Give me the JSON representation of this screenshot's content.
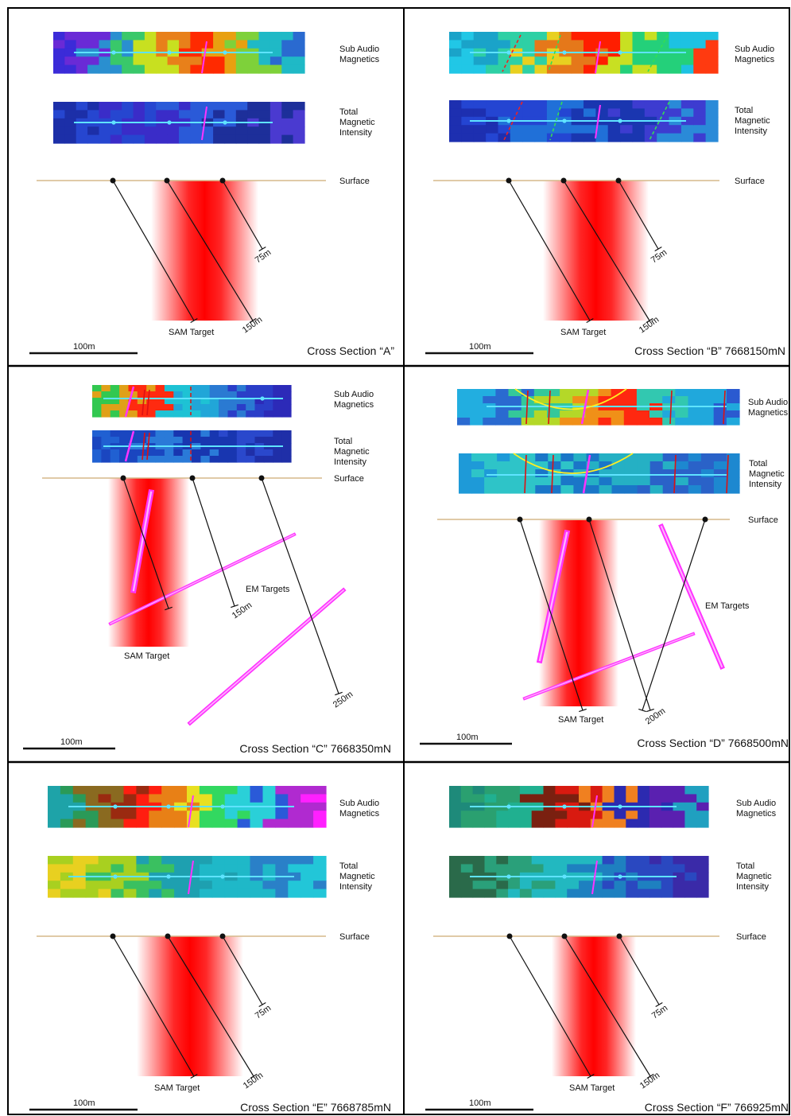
{
  "labels": {
    "sam": [
      "Sub Audio",
      "Magnetics"
    ],
    "tmi": [
      "Total",
      "Magnetic",
      "Intensity"
    ],
    "surface": "Surface",
    "sam_target": "SAM Target",
    "em_targets": "EM Targets",
    "scale": "100m"
  },
  "colors": {
    "frame": "#000000",
    "surface_line": "#d6b98a",
    "drill_hole": "#111111",
    "target_red": "#ff0000",
    "em_target": "#ff33ff",
    "profile_line": "#5fe3ff",
    "structure_line": "#dd1111",
    "contour_yellow": "#ffee22"
  },
  "sections": [
    {
      "id": "A",
      "title": "Cross Section “A”",
      "holes": [
        "75m",
        "150m"
      ],
      "target_label": "SAM Target",
      "em_label": null,
      "sam_palette": [
        "#3b2bd8",
        "#6a2ad6",
        "#2a8fd0",
        "#39c86a",
        "#c8e020",
        "#e8801a",
        "#ff2a00",
        "#e8a010",
        "#7ed13a",
        "#1fb9c6",
        "#2a6ad0"
      ],
      "tmi_palette": [
        "#1c2fa8",
        "#2646d0",
        "#3a2cc8",
        "#2a5ad8",
        "#1d2f9a",
        "#4a3ad0"
      ]
    },
    {
      "id": "B",
      "title": "Cross Section “B” 7668150mN",
      "holes": [
        "75m",
        "150m"
      ],
      "target_label": "SAM Target",
      "em_label": null,
      "sam_palette": [
        "#21c7e6",
        "#1aa3c9",
        "#2ed0a5",
        "#e8d020",
        "#e5781a",
        "#ff1e00",
        "#c8e022",
        "#24d07a",
        "#1dc2e2",
        "#ff3a10"
      ],
      "tmi_palette": [
        "#1d2fb0",
        "#2445d2",
        "#2070d8",
        "#1a36b0",
        "#3d3cd0",
        "#2a8ad8"
      ]
    },
    {
      "id": "C",
      "title": "Cross Section “C” 7668350mN",
      "holes": [
        "150m",
        "250m"
      ],
      "target_label": "SAM Target",
      "em_label": "EM Targets",
      "sam_palette": [
        "#32c850",
        "#e0a018",
        "#ff2a10",
        "#1ec2d4",
        "#21a6d8",
        "#2a7ad2",
        "#2a3ec8",
        "#2c2ab8"
      ],
      "tmi_palette": [
        "#2060d2",
        "#1a46c0",
        "#2a7ad8",
        "#1836b0",
        "#2a48cc",
        "#1f2fa8"
      ]
    },
    {
      "id": "D",
      "title": "Cross Section “D” 7668500mN",
      "holes": [
        "200m"
      ],
      "target_label": "SAM Target",
      "em_label": "EM Targets",
      "sam_palette": [
        "#22aee0",
        "#2a6ad0",
        "#34c89a",
        "#b4d828",
        "#f09018",
        "#ff2810",
        "#32c8b0",
        "#20a8dc",
        "#2a5ad0"
      ],
      "tmi_palette": [
        "#1e9ad8",
        "#2ec4c8",
        "#1a76c8",
        "#25b0c4",
        "#2a62c8",
        "#1d88d0"
      ]
    },
    {
      "id": "E",
      "title": "Cross Section “E” 7668785mN",
      "holes": [
        "75m",
        "150m"
      ],
      "target_label": "SAM Target",
      "em_label": null,
      "sam_palette": [
        "#1ea3a8",
        "#2a9a58",
        "#8a6a20",
        "#9a2a10",
        "#ff1e10",
        "#e88016",
        "#e8e020",
        "#32d860",
        "#2ad0d8",
        "#2a5ad8",
        "#b02ad0",
        "#ff20ff"
      ],
      "tmi_palette": [
        "#e8d020",
        "#a8d020",
        "#3ac060",
        "#1ea0b0",
        "#1fb8c8",
        "#2a80c8",
        "#22c6d8"
      ]
    },
    {
      "id": "F",
      "title": "Cross Section “F” 766925mN",
      "holes": [
        "75m",
        "150m"
      ],
      "target_label": "SAM Target",
      "em_label": null,
      "sam_palette": [
        "#1e8a7a",
        "#2aa070",
        "#20b090",
        "#7a2010",
        "#d81a10",
        "#f08020",
        "#2c2ab0",
        "#5a20b0",
        "#20a0c0"
      ],
      "tmi_palette": [
        "#2a6a4a",
        "#2aa07a",
        "#22b8c0",
        "#1e80c0",
        "#2a48c0",
        "#3a2aa8"
      ]
    }
  ]
}
